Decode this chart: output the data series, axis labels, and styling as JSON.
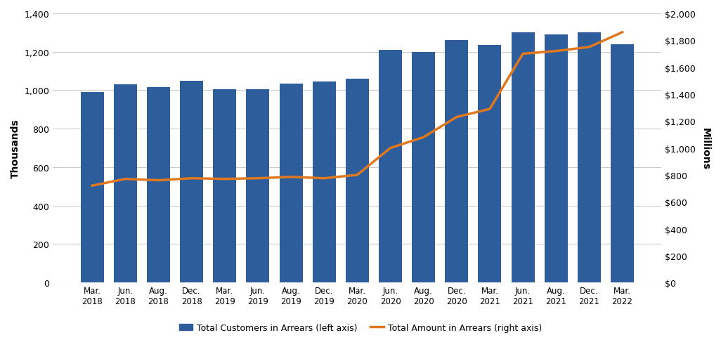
{
  "categories": [
    "Mar.\n2018",
    "Jun.\n2018",
    "Aug.\n2018",
    "Dec.\n2018",
    "Mar.\n2019",
    "Jun.\n2019",
    "Aug.\n2019",
    "Dec.\n2019",
    "Mar.\n2020",
    "Jun.\n2020",
    "Aug.\n2020",
    "Dec.\n2020",
    "Mar.\n2021",
    "Jun.\n2021",
    "Aug.\n2021",
    "Dec.\n2021",
    "Mar.\n2022"
  ],
  "bar_values": [
    990,
    1030,
    1015,
    1050,
    1005,
    1005,
    1035,
    1045,
    1060,
    1210,
    1200,
    1260,
    1235,
    1300,
    1290,
    1300,
    1240
  ],
  "line_values": [
    720,
    770,
    760,
    775,
    770,
    775,
    785,
    775,
    800,
    1000,
    1080,
    1230,
    1290,
    1700,
    1720,
    1750,
    1860
  ],
  "bar_color": "#2E5D9B",
  "line_color": "#E07820",
  "ylabel_left": "Thousands",
  "ylabel_right": "Millions",
  "ylim_left": [
    0,
    1400
  ],
  "ylim_right": [
    0,
    2000
  ],
  "yticks_left": [
    0,
    200,
    400,
    600,
    800,
    1000,
    1200,
    1400
  ],
  "yticks_right": [
    0,
    200,
    400,
    600,
    800,
    1000,
    1200,
    1400,
    1600,
    1800,
    2000
  ],
  "ytick_labels_right": [
    "$0",
    "$200",
    "$400",
    "$600",
    "$800",
    "$1,000",
    "$1,200",
    "$1,400",
    "$1,600",
    "$1,800",
    "$2,000"
  ],
  "ytick_labels_left": [
    "0",
    "200",
    "400",
    "600",
    "800",
    "1,000",
    "1,200",
    "1,400"
  ],
  "legend_bar_label": "Total Customers in Arrears (left axis)",
  "legend_line_label": "Total Amount in Arrears (right axis)",
  "grid_color": "#cccccc",
  "background_color": "#ffffff",
  "line_width": 2.5
}
